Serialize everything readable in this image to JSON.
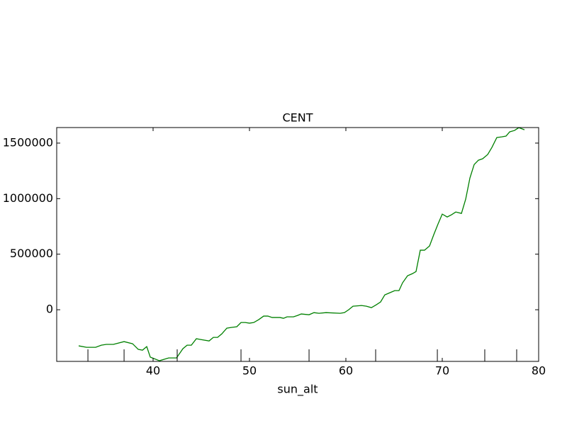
{
  "chart_data": {
    "type": "line",
    "title": "CENT",
    "x_label": "sun_alt",
    "series": [
      {
        "color": "#008000",
        "x": [
          32.28,
          33.09,
          34.04,
          34.63,
          35.15,
          35.88,
          36.99,
          37.87,
          38.46,
          38.9,
          39.34,
          39.71,
          40.66,
          41.62,
          42.43,
          43.09,
          43.53,
          43.97,
          44.49,
          44.93,
          45.81,
          46.25,
          46.69,
          47.13,
          47.65,
          48.16,
          48.68,
          49.12,
          49.56,
          50.0,
          50.44,
          50.96,
          51.47,
          51.91,
          52.35,
          53.16,
          53.53,
          53.9,
          54.56,
          55.0,
          55.37,
          56.18,
          56.69,
          57.21,
          57.94,
          59.41,
          59.85,
          60.29,
          60.74,
          61.62,
          62.13,
          62.65,
          63.16,
          63.6,
          64.04,
          64.56,
          65.07,
          65.51,
          65.88,
          66.4,
          66.91,
          67.28,
          67.72,
          68.16,
          68.68,
          69.12,
          69.56,
          70.0,
          70.51,
          70.96,
          71.4,
          71.99,
          72.43,
          72.87,
          73.31,
          73.75,
          74.19,
          74.71,
          75.15,
          75.66,
          76.18,
          76.62,
          76.99,
          77.5,
          77.94,
          78.53
        ],
        "values": [
          -325000,
          -338000,
          -338000,
          -319000,
          -312000,
          -312000,
          -287000,
          -306000,
          -357000,
          -364000,
          -332000,
          -427000,
          -459000,
          -434000,
          -434000,
          -351000,
          -319000,
          -319000,
          -261000,
          -268000,
          -281000,
          -249000,
          -249000,
          -217000,
          -166000,
          -159000,
          -153000,
          -115000,
          -115000,
          -121000,
          -115000,
          -89000,
          -57000,
          -57000,
          -70000,
          -70000,
          -77000,
          -64000,
          -64000,
          -51000,
          -38000,
          -45000,
          -26000,
          -32000,
          -26000,
          -32000,
          -26000,
          0,
          32000,
          38000,
          32000,
          19000,
          45000,
          70000,
          134000,
          153000,
          172000,
          172000,
          242000,
          306000,
          325000,
          344000,
          536000,
          536000,
          574000,
          676000,
          772000,
          861000,
          835000,
          855000,
          880000,
          867000,
          995000,
          1186000,
          1307000,
          1346000,
          1359000,
          1397000,
          1461000,
          1550000,
          1556000,
          1563000,
          1601000,
          1614000,
          1639000,
          1620000
        ]
      }
    ],
    "rug_x": [
      33.24,
      36.99,
      42.5,
      49.12,
      56.18,
      63.09,
      69.49,
      74.41,
      77.72
    ],
    "xlim": [
      30,
      80
    ],
    "xticks": [
      40,
      50,
      60,
      70,
      80
    ],
    "ylim": [
      -465000,
      1640000
    ],
    "yticks": [
      0,
      500000,
      1000000,
      1500000
    ]
  }
}
